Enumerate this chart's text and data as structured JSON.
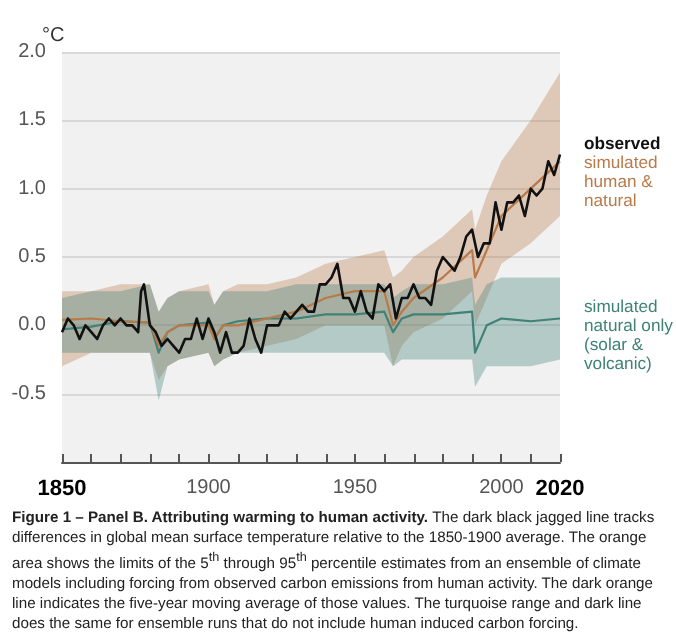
{
  "chart_data": {
    "type": "line",
    "ylabel": "°C",
    "xlim": [
      1850,
      2020
    ],
    "ylim": [
      -1,
      2
    ],
    "xticks": [
      1850,
      {
        "value": 1860,
        "label": null
      },
      {
        "value": 1870,
        "label": null
      },
      {
        "value": 1880,
        "label": null
      },
      {
        "value": 1890,
        "label": null
      },
      1900,
      {
        "value": 1910,
        "label": null
      },
      {
        "value": 1920,
        "label": null
      },
      {
        "value": 1930,
        "label": null
      },
      {
        "value": 1940,
        "label": null
      },
      1950,
      {
        "value": 1960,
        "label": null
      },
      {
        "value": 1970,
        "label": null
      },
      {
        "value": 1980,
        "label": null
      },
      {
        "value": 1990,
        "label": null
      },
      2000,
      {
        "value": 2010,
        "label": null
      },
      2020
    ],
    "yticks": [
      {
        "value": -0.5,
        "label": "-0.5"
      },
      {
        "value": 0,
        "label": "0.0"
      },
      {
        "value": 0.5,
        "label": "0.5"
      },
      {
        "value": 1,
        "label": "1.0"
      },
      {
        "value": 1.5,
        "label": "1.5"
      },
      {
        "value": 2,
        "label": "2.0"
      }
    ],
    "grid": "y",
    "legend": false,
    "marker": "none",
    "line_style": "solid",
    "series": [
      {
        "name": "simulated human & natural",
        "color": "#b97a4a",
        "x": [
          1850,
          1860,
          1870,
          1880,
          1883,
          1886,
          1890,
          1900,
          1902,
          1905,
          1910,
          1920,
          1930,
          1940,
          1950,
          1960,
          1963,
          1966,
          1970,
          1980,
          1990,
          1991,
          1995,
          2000,
          2010,
          2020
        ],
        "values": [
          0.04,
          0.05,
          0.03,
          0.02,
          -0.15,
          -0.05,
          0.0,
          0.0,
          -0.1,
          0.0,
          0.0,
          0.05,
          0.1,
          0.2,
          0.25,
          0.25,
          0.0,
          0.1,
          0.2,
          0.35,
          0.55,
          0.35,
          0.55,
          0.8,
          1.0,
          1.2
        ],
        "lower": [
          -0.3,
          -0.2,
          -0.2,
          -0.2,
          -0.4,
          -0.3,
          -0.25,
          -0.2,
          -0.3,
          -0.25,
          -0.2,
          -0.15,
          -0.1,
          0.0,
          0.0,
          0.0,
          -0.3,
          -0.15,
          -0.05,
          0.05,
          0.25,
          0.0,
          0.2,
          0.45,
          0.6,
          0.8
        ],
        "upper": [
          0.25,
          0.25,
          0.3,
          0.3,
          0.1,
          0.2,
          0.25,
          0.3,
          0.15,
          0.25,
          0.3,
          0.3,
          0.35,
          0.45,
          0.5,
          0.55,
          0.35,
          0.4,
          0.5,
          0.65,
          0.85,
          0.7,
          0.95,
          1.2,
          1.5,
          1.85
        ]
      },
      {
        "name": "simulated natural only (solar & volcanic)",
        "color": "#3f8277",
        "x": [
          1850,
          1860,
          1870,
          1880,
          1883,
          1886,
          1890,
          1900,
          1902,
          1905,
          1910,
          1920,
          1930,
          1940,
          1950,
          1960,
          1963,
          1966,
          1970,
          1980,
          1990,
          1991,
          1995,
          2000,
          2010,
          2020
        ],
        "values": [
          -0.03,
          -0.01,
          0.03,
          0.02,
          -0.2,
          -0.05,
          0.0,
          0.02,
          -0.1,
          0.0,
          0.03,
          0.05,
          0.05,
          0.08,
          0.08,
          0.1,
          -0.05,
          0.05,
          0.08,
          0.08,
          0.1,
          -0.2,
          0.0,
          0.05,
          0.03,
          0.05
        ],
        "lower": [
          -0.2,
          -0.2,
          -0.2,
          -0.2,
          -0.55,
          -0.3,
          -0.25,
          -0.2,
          -0.3,
          -0.25,
          -0.2,
          -0.2,
          -0.2,
          -0.2,
          -0.2,
          -0.2,
          -0.3,
          -0.25,
          -0.25,
          -0.25,
          -0.25,
          -0.45,
          -0.3,
          -0.3,
          -0.3,
          -0.25
        ],
        "upper": [
          0.2,
          0.25,
          0.25,
          0.3,
          0.1,
          0.2,
          0.25,
          0.25,
          0.15,
          0.25,
          0.25,
          0.25,
          0.3,
          0.3,
          0.3,
          0.3,
          0.2,
          0.25,
          0.3,
          0.3,
          0.35,
          0.15,
          0.3,
          0.35,
          0.35,
          0.35
        ]
      },
      {
        "name": "observed",
        "color": "#111111",
        "x": [
          1850,
          1852,
          1854,
          1856,
          1858,
          1860,
          1862,
          1864,
          1866,
          1868,
          1870,
          1872,
          1874,
          1876,
          1877,
          1878,
          1880,
          1882,
          1884,
          1886,
          1888,
          1890,
          1892,
          1894,
          1896,
          1898,
          1900,
          1902,
          1904,
          1906,
          1908,
          1910,
          1912,
          1914,
          1916,
          1918,
          1920,
          1922,
          1924,
          1926,
          1928,
          1930,
          1932,
          1934,
          1936,
          1938,
          1940,
          1942,
          1944,
          1946,
          1948,
          1950,
          1952,
          1954,
          1956,
          1958,
          1960,
          1962,
          1964,
          1966,
          1968,
          1970,
          1972,
          1974,
          1976,
          1978,
          1980,
          1982,
          1984,
          1986,
          1988,
          1990,
          1992,
          1994,
          1996,
          1998,
          2000,
          2002,
          2004,
          2006,
          2008,
          2010,
          2012,
          2014,
          2016,
          2018,
          2020
        ],
        "values": [
          -0.05,
          0.05,
          0.0,
          -0.1,
          0.0,
          -0.05,
          -0.1,
          0.0,
          0.05,
          0.0,
          0.05,
          0.0,
          0.0,
          -0.05,
          0.25,
          0.3,
          0.0,
          -0.05,
          -0.15,
          -0.1,
          -0.15,
          -0.2,
          -0.1,
          -0.1,
          0.05,
          -0.1,
          0.05,
          -0.05,
          -0.2,
          -0.05,
          -0.2,
          -0.2,
          -0.15,
          0.05,
          -0.1,
          -0.2,
          0.0,
          0.0,
          0.0,
          0.1,
          0.05,
          0.1,
          0.15,
          0.1,
          0.1,
          0.3,
          0.3,
          0.35,
          0.45,
          0.2,
          0.2,
          0.1,
          0.25,
          0.1,
          0.05,
          0.3,
          0.25,
          0.3,
          0.05,
          0.2,
          0.2,
          0.3,
          0.2,
          0.2,
          0.15,
          0.4,
          0.5,
          0.45,
          0.4,
          0.5,
          0.65,
          0.7,
          0.5,
          0.6,
          0.6,
          0.9,
          0.7,
          0.9,
          0.9,
          0.95,
          0.8,
          1.0,
          0.95,
          1.0,
          1.2,
          1.1,
          1.25
        ]
      }
    ],
    "annotations": [
      "Figure 1 – Panel B. Attributing warming to human activity.",
      "The dark black jagged line tracks differences in global mean surface temperature relative to the 1850-1900 average. The orange area shows the limits of the 5$^{th}$ through 95$^{th}$ percentile estimates from an ensemble of climate models including forcing from observed carbon emissions from human activity. The dark orange line indicates the five-year moving average of those values. The turquoise range and dark line does the same for ensemble runs that do not include human induced carbon forcing."
    ]
  }
}
